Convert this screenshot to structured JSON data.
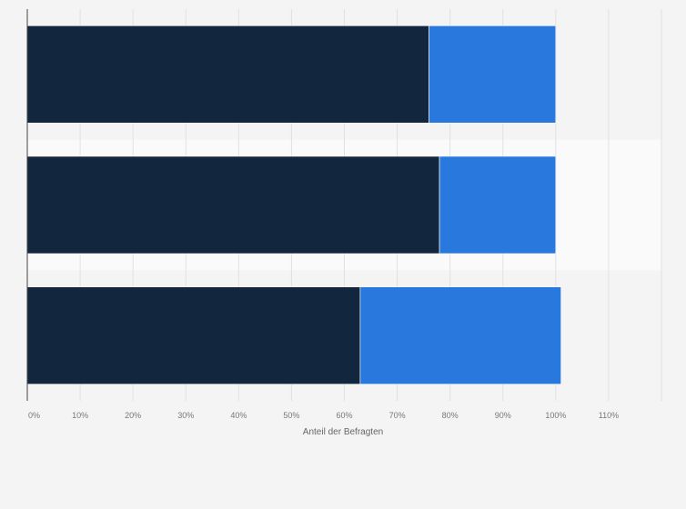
{
  "chart_data": {
    "type": "bar",
    "orientation": "horizontal",
    "stacked": true,
    "categories": [
      "",
      "",
      ""
    ],
    "series": [
      {
        "values": [
          76,
          78,
          63
        ],
        "color": "#12273e"
      },
      {
        "values": [
          24,
          22,
          38
        ],
        "color": "#2878dd"
      }
    ],
    "xlabel": "Anteil der Befragten",
    "xlim": [
      0,
      120
    ],
    "xticks": [
      {
        "value": 0,
        "label": "0%"
      },
      {
        "value": 10,
        "label": "10%"
      },
      {
        "value": 20,
        "label": "20%"
      },
      {
        "value": 30,
        "label": "30%"
      },
      {
        "value": 40,
        "label": "40%"
      },
      {
        "value": 50,
        "label": "50%"
      },
      {
        "value": 60,
        "label": "60%"
      },
      {
        "value": 70,
        "label": "70%"
      },
      {
        "value": 80,
        "label": "80%"
      },
      {
        "value": 90,
        "label": "90%"
      },
      {
        "value": 100,
        "label": "100%"
      },
      {
        "value": 110,
        "label": "110%"
      },
      {
        "value": 120,
        "label": ""
      }
    ],
    "grid": true,
    "legend": "none",
    "colors": {
      "background": "#f4f4f4",
      "band": "#fafafa",
      "grid": "#e1e1e1",
      "axis": "#444444",
      "tick_text": "#777777"
    }
  }
}
